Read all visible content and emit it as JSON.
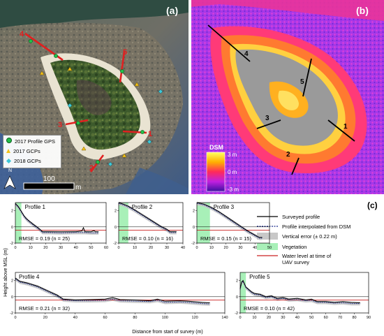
{
  "panel_a": {
    "label": "(a)",
    "legend": [
      {
        "text": "2017 Profile GPS",
        "color": "#22c04a",
        "shape": "circle"
      },
      {
        "text": "2017 GCPs",
        "color": "#f2c21a",
        "shape": "triangle"
      },
      {
        "text": "2018 GCPs",
        "color": "#3ec6d6",
        "shape": "diamond"
      }
    ],
    "north": "N",
    "scalebar_value": "100",
    "scalebar_unit": "m",
    "transect_labels": [
      "1",
      "2",
      "3",
      "4",
      "5"
    ]
  },
  "panel_b": {
    "label": "(b)",
    "colorbar_title": "DSM",
    "colorbar_ticks": [
      "3 m",
      "0 m",
      "-3 m"
    ],
    "transect_labels": [
      "1",
      "2",
      "3",
      "4",
      "5"
    ]
  },
  "panel_c": {
    "label": "(c)",
    "ylabel": "Height above MSL (m)",
    "xlabel": "Distance from start of survey (m)",
    "legend": [
      {
        "text": "Surveyed profile",
        "style": "line",
        "color": "#000000"
      },
      {
        "text": "Profile interpolated from DSM",
        "style": "dotted",
        "color": "#1a2a8a"
      },
      {
        "text": "Vertical error (± 0.22 m)",
        "style": "box",
        "color": "#c8c8c8"
      },
      {
        "text": "Vegetation",
        "style": "box",
        "color": "#a8f0b8"
      },
      {
        "text": "Water level at time of UAV survey",
        "style": "line",
        "color": "#cc2020"
      }
    ]
  },
  "chart_data": [
    {
      "type": "line",
      "title": "Profile 1",
      "annotation": "RMSE = 0.19 (n = 25)",
      "xlim": [
        0,
        60
      ],
      "ylim": [
        -2,
        3
      ],
      "xticks": [
        0,
        10,
        20,
        30,
        40,
        50,
        60
      ],
      "yticks": [
        -2,
        0,
        2
      ],
      "vegetation": [
        0,
        4
      ],
      "water_level": -0.4,
      "surveyed": [
        [
          0,
          2.9
        ],
        [
          2,
          2.5
        ],
        [
          4,
          1.9
        ],
        [
          6,
          1.3
        ],
        [
          8,
          0.9
        ],
        [
          10,
          0.6
        ],
        [
          12,
          0.3
        ],
        [
          15,
          -0.1
        ],
        [
          18,
          -0.6
        ],
        [
          22,
          -0.6
        ],
        [
          30,
          -0.6
        ],
        [
          40,
          -0.6
        ],
        [
          44,
          -0.5
        ],
        [
          45,
          -0.1
        ],
        [
          46,
          -0.6
        ],
        [
          50,
          -0.6
        ],
        [
          52,
          -0.45
        ],
        [
          53,
          -0.6
        ],
        [
          55,
          -0.6
        ]
      ],
      "interpolated": [
        [
          0,
          2.8
        ],
        [
          2,
          2.4
        ],
        [
          4,
          1.8
        ],
        [
          6,
          1.2
        ],
        [
          8,
          0.8
        ],
        [
          10,
          0.5
        ],
        [
          12,
          0.2
        ],
        [
          15,
          -0.2
        ],
        [
          18,
          -0.7
        ],
        [
          22,
          -0.7
        ],
        [
          30,
          -0.75
        ],
        [
          40,
          -0.7
        ],
        [
          44,
          -0.7
        ],
        [
          46,
          -0.7
        ],
        [
          50,
          -0.75
        ],
        [
          55,
          -0.75
        ]
      ]
    },
    {
      "type": "line",
      "title": "Profile 2",
      "annotation": "RMSE = 0.10 (n = 16)",
      "xlim": [
        0,
        40
      ],
      "ylim": [
        -2,
        3
      ],
      "xticks": [
        0,
        10,
        20,
        30,
        40
      ],
      "yticks": [
        -2,
        0,
        2
      ],
      "vegetation": [
        0,
        6
      ],
      "water_level": -0.4,
      "surveyed": [
        [
          0,
          3.0
        ],
        [
          3,
          2.8
        ],
        [
          6,
          2.55
        ],
        [
          10,
          2.1
        ],
        [
          14,
          1.6
        ],
        [
          18,
          1.1
        ],
        [
          22,
          0.6
        ],
        [
          26,
          0.1
        ],
        [
          30,
          -0.3
        ],
        [
          32,
          -0.6
        ],
        [
          34,
          -0.6
        ],
        [
          36,
          -0.6
        ]
      ],
      "interpolated": [
        [
          0,
          2.9
        ],
        [
          3,
          2.7
        ],
        [
          6,
          2.45
        ],
        [
          10,
          2.0
        ],
        [
          14,
          1.5
        ],
        [
          18,
          1.0
        ],
        [
          22,
          0.5
        ],
        [
          26,
          0.0
        ],
        [
          30,
          -0.4
        ],
        [
          32,
          -0.7
        ],
        [
          36,
          -0.7
        ]
      ]
    },
    {
      "type": "line",
      "title": "Profile 3",
      "annotation": "RMSE = 0.15 (n = 15)",
      "xlim": [
        0,
        50
      ],
      "ylim": [
        -2,
        3
      ],
      "xticks": [
        0,
        10,
        20,
        30,
        40,
        50
      ],
      "yticks": [
        -2,
        0,
        2
      ],
      "vegetation": [
        0,
        9
      ],
      "water_level": -0.4,
      "surveyed": [
        [
          0,
          3.0
        ],
        [
          5,
          2.8
        ],
        [
          10,
          2.4
        ],
        [
          15,
          1.9
        ],
        [
          20,
          1.3
        ],
        [
          25,
          0.7
        ],
        [
          30,
          0.1
        ],
        [
          35,
          -0.5
        ],
        [
          40,
          -1.0
        ],
        [
          43,
          -1.3
        ],
        [
          45,
          -1.3
        ]
      ],
      "interpolated": [
        [
          0,
          2.9
        ],
        [
          5,
          2.7
        ],
        [
          10,
          2.3
        ],
        [
          15,
          1.8
        ],
        [
          20,
          1.2
        ],
        [
          25,
          0.6
        ],
        [
          30,
          0.0
        ],
        [
          35,
          -0.6
        ],
        [
          40,
          -1.1
        ],
        [
          43,
          -1.4
        ],
        [
          45,
          -1.4
        ]
      ]
    },
    {
      "type": "line",
      "title": "Profile 4",
      "annotation": "RMSE = 0.21 (n = 32)",
      "xlim": [
        0,
        140
      ],
      "ylim": [
        -2,
        3
      ],
      "xticks": [
        0,
        20,
        40,
        60,
        80,
        100,
        120,
        140
      ],
      "yticks": [
        -2,
        0,
        2
      ],
      "water_level": -0.4,
      "surveyed": [
        [
          0,
          2.3
        ],
        [
          3,
          1.9
        ],
        [
          8,
          1.7
        ],
        [
          15,
          1.3
        ],
        [
          22,
          0.7
        ],
        [
          28,
          0.2
        ],
        [
          32,
          -0.3
        ],
        [
          40,
          -0.4
        ],
        [
          50,
          -0.35
        ],
        [
          60,
          -0.3
        ],
        [
          65,
          -0.1
        ],
        [
          70,
          -0.35
        ],
        [
          80,
          -0.4
        ],
        [
          90,
          -0.5
        ],
        [
          95,
          -0.3
        ],
        [
          100,
          -0.55
        ],
        [
          110,
          -0.5
        ],
        [
          115,
          -0.55
        ],
        [
          125,
          -0.7
        ],
        [
          130,
          -0.75
        ]
      ],
      "interpolated": [
        [
          0,
          2.2
        ],
        [
          3,
          1.8
        ],
        [
          8,
          1.6
        ],
        [
          15,
          1.2
        ],
        [
          22,
          0.6
        ],
        [
          28,
          0.1
        ],
        [
          32,
          -0.4
        ],
        [
          40,
          -0.5
        ],
        [
          50,
          -0.5
        ],
        [
          60,
          -0.45
        ],
        [
          65,
          -0.3
        ],
        [
          70,
          -0.5
        ],
        [
          80,
          -0.55
        ],
        [
          90,
          -0.6
        ],
        [
          95,
          -0.45
        ],
        [
          100,
          -0.7
        ],
        [
          110,
          -0.65
        ],
        [
          115,
          -0.7
        ],
        [
          125,
          -0.85
        ],
        [
          130,
          -0.9
        ]
      ]
    },
    {
      "type": "line",
      "title": "Profile 5",
      "annotation": "RMSE = 0.10 (n = 42)",
      "xlim": [
        0,
        90
      ],
      "ylim": [
        -2,
        3
      ],
      "xticks": [
        0,
        10,
        20,
        30,
        40,
        50,
        60,
        70,
        80,
        90
      ],
      "yticks": [
        -2,
        0,
        2
      ],
      "vegetation": [
        0,
        4
      ],
      "water_level": -0.4,
      "surveyed": [
        [
          0,
          1.0
        ],
        [
          1,
          1.8
        ],
        [
          2,
          2.0
        ],
        [
          3,
          1.6
        ],
        [
          4,
          1.2
        ],
        [
          6,
          0.9
        ],
        [
          8,
          0.6
        ],
        [
          10,
          0.4
        ],
        [
          14,
          0.3
        ],
        [
          18,
          0.0
        ],
        [
          22,
          0.1
        ],
        [
          26,
          -0.2
        ],
        [
          30,
          -0.1
        ],
        [
          34,
          -0.3
        ],
        [
          40,
          -0.2
        ],
        [
          46,
          -0.4
        ],
        [
          50,
          -0.3
        ],
        [
          54,
          -0.6
        ],
        [
          60,
          -0.6
        ],
        [
          66,
          -0.7
        ],
        [
          72,
          -0.6
        ],
        [
          78,
          -0.7
        ],
        [
          84,
          -0.75
        ]
      ],
      "interpolated": [
        [
          0,
          0.9
        ],
        [
          1,
          1.7
        ],
        [
          2,
          1.9
        ],
        [
          3,
          1.5
        ],
        [
          4,
          1.1
        ],
        [
          6,
          0.8
        ],
        [
          8,
          0.5
        ],
        [
          10,
          0.3
        ],
        [
          14,
          0.2
        ],
        [
          18,
          -0.1
        ],
        [
          22,
          0.0
        ],
        [
          26,
          -0.3
        ],
        [
          30,
          -0.2
        ],
        [
          34,
          -0.4
        ],
        [
          40,
          -0.35
        ],
        [
          46,
          -0.5
        ],
        [
          50,
          -0.45
        ],
        [
          54,
          -0.7
        ],
        [
          60,
          -0.7
        ],
        [
          66,
          -0.8
        ],
        [
          72,
          -0.75
        ],
        [
          78,
          -0.85
        ],
        [
          84,
          -0.85
        ]
      ]
    }
  ]
}
